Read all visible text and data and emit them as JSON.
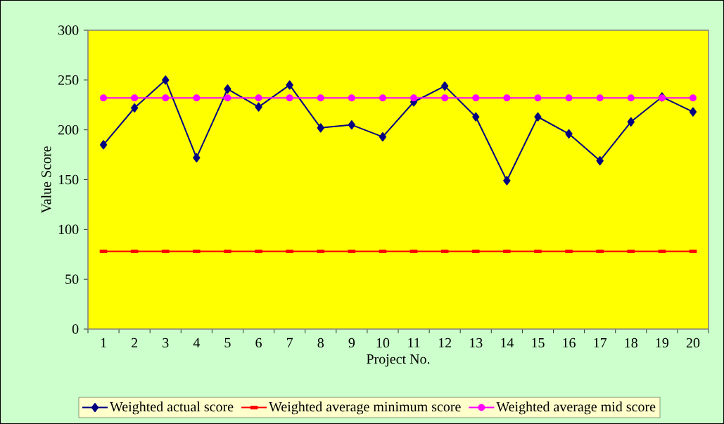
{
  "chart_data": {
    "type": "line",
    "xlabel": "Project No.",
    "ylabel": "Value Score",
    "categories": [
      "1",
      "2",
      "3",
      "4",
      "5",
      "6",
      "7",
      "8",
      "9",
      "10",
      "11",
      "12",
      "13",
      "14",
      "15",
      "16",
      "17",
      "18",
      "19",
      "20"
    ],
    "ylim": [
      0,
      300
    ],
    "yticks": [
      0,
      50,
      100,
      150,
      200,
      250,
      300
    ],
    "grid": false,
    "legend": "bottom",
    "line_style": "solid",
    "series": [
      {
        "name": "Weighted actual score",
        "color": "#000080",
        "marker": "diamond",
        "values": [
          185,
          222,
          250,
          172,
          241,
          223,
          245,
          202,
          205,
          193,
          228,
          244,
          213,
          149,
          213,
          196,
          169,
          208,
          233,
          218
        ]
      },
      {
        "name": "Weighted average minimum score",
        "color": "#ff0000",
        "marker": "square",
        "values": [
          78,
          78,
          78,
          78,
          78,
          78,
          78,
          78,
          78,
          78,
          78,
          78,
          78,
          78,
          78,
          78,
          78,
          78,
          78,
          78
        ]
      },
      {
        "name": "Weighted average mid score",
        "color": "#ff00ff",
        "marker": "circle",
        "values": [
          232,
          232,
          232,
          232,
          232,
          232,
          232,
          232,
          232,
          232,
          232,
          232,
          232,
          232,
          232,
          232,
          232,
          232,
          232,
          232
        ]
      }
    ]
  }
}
